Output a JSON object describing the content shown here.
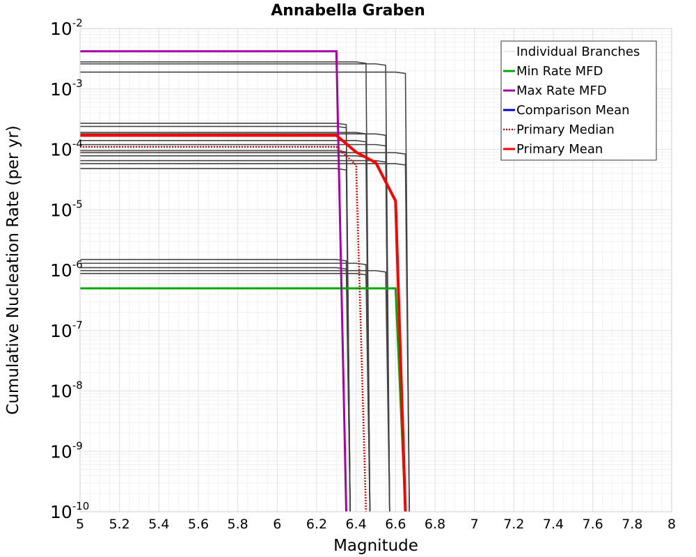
{
  "chart_data": {
    "type": "line",
    "title": "Annabella Graben",
    "xlabel": "Magnitude",
    "ylabel": "Cumulative Nucleation Rate (per yr)",
    "xlim": [
      5,
      8
    ],
    "ylim": [
      1e-10,
      0.01
    ],
    "yscale": "log",
    "grid": true,
    "legend_position": "top-right",
    "x_ticks": [
      "5",
      "5.2",
      "5.4",
      "5.6",
      "5.8",
      "6",
      "6.2",
      "6.4",
      "6.6",
      "6.8",
      "7",
      "7.2",
      "7.4",
      "7.6",
      "7.8",
      "8"
    ],
    "y_ticks": [
      {
        "base": "10",
        "exp": "-2"
      },
      {
        "base": "10",
        "exp": "-3"
      },
      {
        "base": "10",
        "exp": "-4"
      },
      {
        "base": "10",
        "exp": "-5"
      },
      {
        "base": "10",
        "exp": "-6"
      },
      {
        "base": "10",
        "exp": "-7"
      },
      {
        "base": "10",
        "exp": "-8"
      },
      {
        "base": "10",
        "exp": "-9"
      },
      {
        "base": "10",
        "exp": "-10"
      }
    ],
    "legend": [
      {
        "label": "Individual Branches",
        "color": "#d8d8d8",
        "style": "solid"
      },
      {
        "label": "Min Rate MFD",
        "color": "#00aa00",
        "style": "solid"
      },
      {
        "label": "Max Rate MFD",
        "color": "#aa00aa",
        "style": "solid"
      },
      {
        "label": "Comparison Mean",
        "color": "#0000cc",
        "style": "solid"
      },
      {
        "label": " Primary Median",
        "color": "#ee0000",
        "style": "dotted"
      },
      {
        "label": "Primary Mean",
        "color": "#ff0000",
        "style": "solid"
      }
    ],
    "individual_branches": [
      {
        "level": 0.0028,
        "mmax": 6.45
      },
      {
        "level": 0.0026,
        "mmax": 6.55
      },
      {
        "level": 0.0019,
        "mmax": 6.65
      },
      {
        "level": 0.00027,
        "mmax": 6.35
      },
      {
        "level": 0.00024,
        "mmax": 6.35
      },
      {
        "level": 0.00019,
        "mmax": 6.45
      },
      {
        "level": 0.00018,
        "mmax": 6.55
      },
      {
        "level": 0.00014,
        "mmax": 6.45
      },
      {
        "level": 0.00012,
        "mmax": 6.55
      },
      {
        "level": 9.5e-05,
        "mmax": 6.35
      },
      {
        "level": 8.8e-05,
        "mmax": 6.65
      },
      {
        "level": 7.8e-05,
        "mmax": 6.45
      },
      {
        "level": 6.5e-05,
        "mmax": 6.55
      },
      {
        "level": 5.8e-05,
        "mmax": 6.65
      },
      {
        "level": 4.8e-05,
        "mmax": 6.35
      },
      {
        "level": 1.5e-06,
        "mmax": 6.35
      },
      {
        "level": 1.3e-06,
        "mmax": 6.45
      },
      {
        "level": 1.1e-06,
        "mmax": 6.35
      },
      {
        "level": 9.8e-07,
        "mmax": 6.55
      },
      {
        "level": 8.8e-07,
        "mmax": 6.45
      }
    ],
    "series": [
      {
        "name": "Min Rate MFD",
        "color": "#00aa00",
        "style": "solid",
        "x": [
          5.0,
          6.6,
          6.65
        ],
        "y": [
          5e-07,
          5e-07,
          1e-10
        ]
      },
      {
        "name": "Max Rate MFD",
        "color": "#aa00aa",
        "style": "solid",
        "x": [
          5.0,
          6.3,
          6.35
        ],
        "y": [
          0.0042,
          0.0042,
          1e-10
        ]
      },
      {
        "name": "Primary Median",
        "color": "#ee0000",
        "style": "dotted",
        "x": [
          5.0,
          6.3,
          6.4,
          6.45
        ],
        "y": [
          0.00011,
          0.00011,
          5.5e-05,
          1e-10
        ]
      },
      {
        "name": "Primary Mean",
        "color": "#ff0000",
        "style": "solid",
        "x": [
          5.0,
          6.3,
          6.4,
          6.5,
          6.6,
          6.65
        ],
        "y": [
          0.00017,
          0.00017,
          9e-05,
          6e-05,
          1.4e-05,
          1e-10
        ]
      }
    ]
  }
}
